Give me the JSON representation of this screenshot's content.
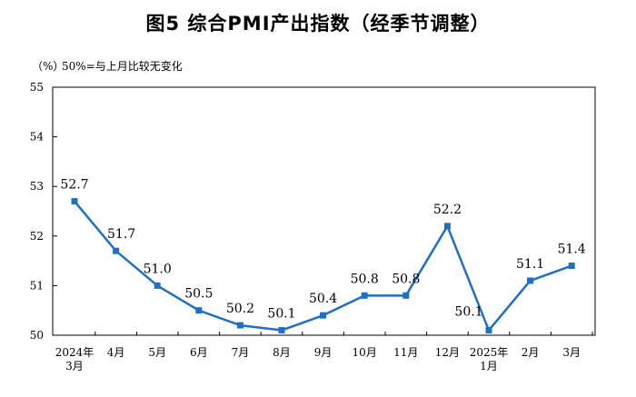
{
  "chart_data": {
    "type": "line",
    "title": "图5  综合PMI产出指数（经季节调整）",
    "unit_label": "（%）",
    "note": "50%=与上月比较无变化",
    "categories": [
      [
        "2024年",
        "3月"
      ],
      [
        "4月"
      ],
      [
        "5月"
      ],
      [
        "6月"
      ],
      [
        "7月"
      ],
      [
        "8月"
      ],
      [
        "9月"
      ],
      [
        "10月"
      ],
      [
        "11月"
      ],
      [
        "12月"
      ],
      [
        "2025年",
        "1月"
      ],
      [
        "2月"
      ],
      [
        "3月"
      ]
    ],
    "values": [
      52.7,
      51.7,
      51.0,
      50.5,
      50.2,
      50.1,
      50.4,
      50.8,
      50.8,
      52.2,
      50.1,
      51.1,
      51.4
    ],
    "data_labels": [
      "52.7",
      "51.7",
      "51.0",
      "50.5",
      "50.2",
      "50.1",
      "50.4",
      "50.8",
      "50.8",
      "52.2",
      "50.1",
      "51.1",
      "51.4"
    ],
    "ylim": [
      50,
      55
    ],
    "yticks": [
      50,
      51,
      52,
      53,
      54,
      55
    ],
    "line_color": "#1f6fc5",
    "grid": false
  }
}
